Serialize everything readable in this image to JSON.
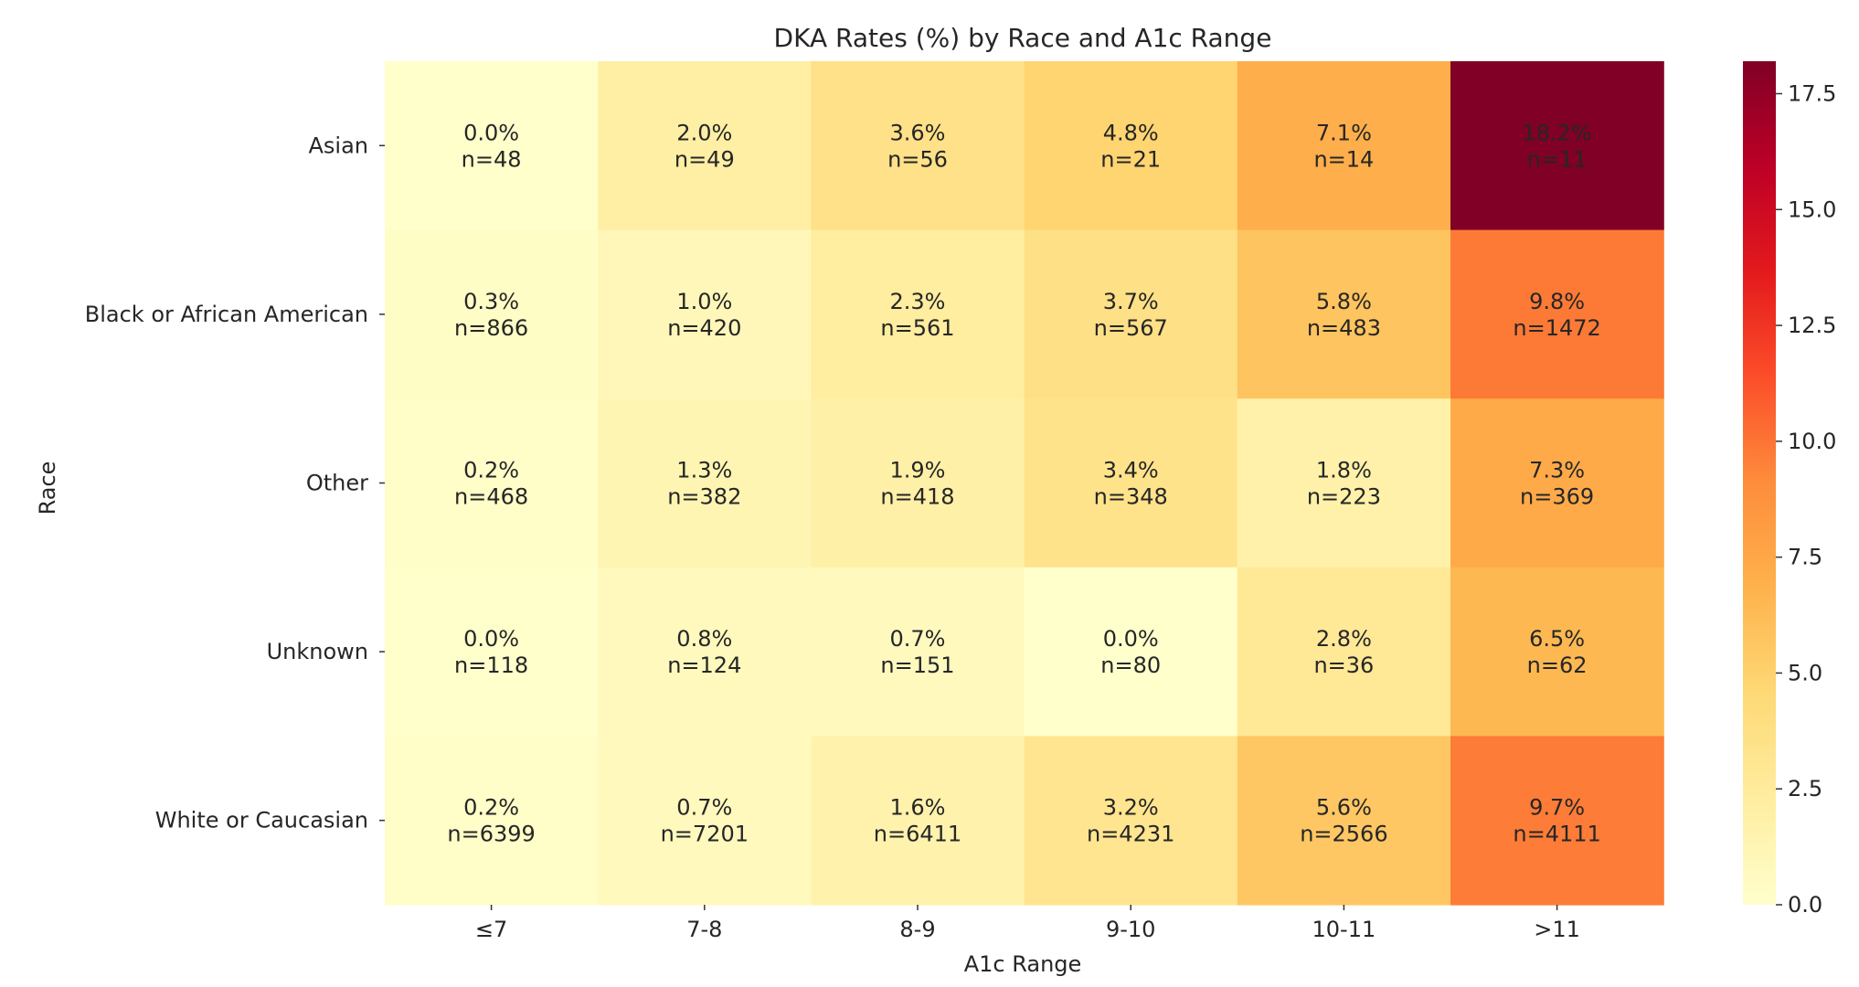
{
  "chart_data": {
    "type": "heatmap",
    "title": "DKA Rates (%) by Race and A1c Range",
    "xlabel": "A1c Range",
    "ylabel": "Race",
    "x_categories": [
      "≤7",
      "7-8",
      "8-9",
      "9-10",
      "10-11",
      ">11"
    ],
    "y_categories": [
      "Asian",
      "Black or African American",
      "Other",
      "Unknown",
      "White or Caucasian"
    ],
    "values": [
      [
        0.0,
        2.0,
        3.6,
        4.8,
        7.1,
        18.2
      ],
      [
        0.3,
        1.0,
        2.3,
        3.7,
        5.8,
        9.8
      ],
      [
        0.2,
        1.3,
        1.9,
        3.4,
        1.8,
        7.3
      ],
      [
        0.0,
        0.8,
        0.7,
        0.0,
        2.8,
        6.5
      ],
      [
        0.2,
        0.7,
        1.6,
        3.2,
        5.6,
        9.7
      ]
    ],
    "value_labels": [
      [
        "0.0%",
        "2.0%",
        "3.6%",
        "4.8%",
        "7.1%",
        "18.2%"
      ],
      [
        "0.3%",
        "1.0%",
        "2.3%",
        "3.7%",
        "5.8%",
        "9.8%"
      ],
      [
        "0.2%",
        "1.3%",
        "1.9%",
        "3.4%",
        "1.8%",
        "7.3%"
      ],
      [
        "0.0%",
        "0.8%",
        "0.7%",
        "0.0%",
        "2.8%",
        "6.5%"
      ],
      [
        "0.2%",
        "0.7%",
        "1.6%",
        "3.2%",
        "5.6%",
        "9.7%"
      ]
    ],
    "n_labels": [
      [
        "n=48",
        "n=49",
        "n=56",
        "n=21",
        "n=14",
        "n=11"
      ],
      [
        "n=866",
        "n=420",
        "n=561",
        "n=567",
        "n=483",
        "n=1472"
      ],
      [
        "n=468",
        "n=382",
        "n=418",
        "n=348",
        "n=223",
        "n=369"
      ],
      [
        "n=118",
        "n=124",
        "n=151",
        "n=80",
        "n=36",
        "n=62"
      ],
      [
        "n=6399",
        "n=7201",
        "n=6411",
        "n=4231",
        "n=2566",
        "n=4111"
      ]
    ],
    "colorbar": {
      "range": [
        0.0,
        18.2
      ],
      "ticks": [
        0.0,
        2.5,
        5.0,
        7.5,
        10.0,
        12.5,
        15.0,
        17.5
      ],
      "tick_labels": [
        "0.0",
        "2.5",
        "5.0",
        "7.5",
        "10.0",
        "12.5",
        "15.0",
        "17.5"
      ],
      "colormap": "YlOrRd",
      "colors": [
        "#ffffcc",
        "#ffeda0",
        "#fed976",
        "#feb24c",
        "#fd8d3c",
        "#fc4e2a",
        "#e31a1c",
        "#bd0026",
        "#800026"
      ]
    }
  }
}
